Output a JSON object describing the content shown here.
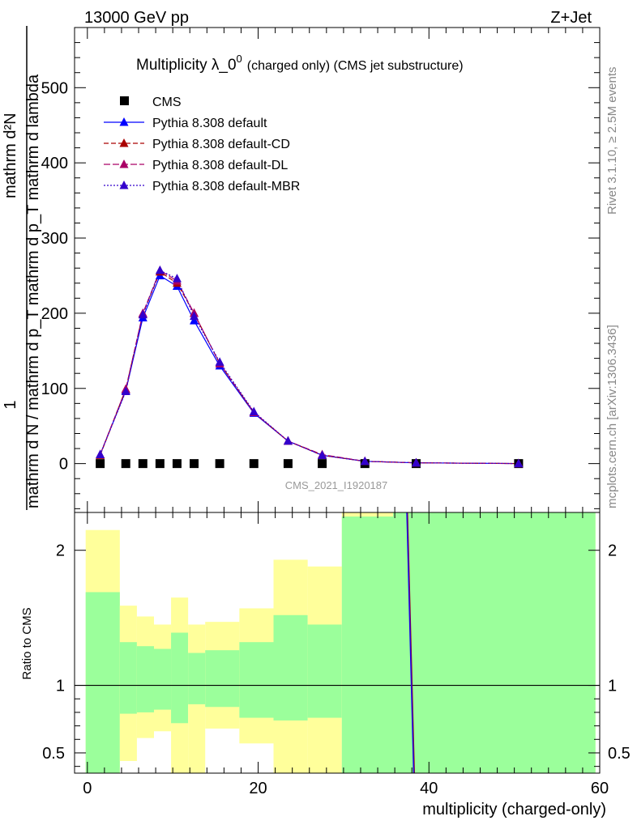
{
  "header": {
    "left": "13000 GeV pp",
    "right": "Z+Jet"
  },
  "side_labels": {
    "rivet": "Rivet 3.1.10, ≥ 2.5M events",
    "mcplots": "mcplots.cern.ch [arXiv:1306.3436]"
  },
  "chart_data": [
    {
      "type": "line",
      "title_main": "Multiplicity λ_0",
      "title_sup": "0",
      "title_suffix": "(charged only) (CMS jet substructure)",
      "watermark": "CMS_2021_I1920187",
      "ylabel_top": "1",
      "ylabel_bottom": "mathrm d N / mathrm d p_T mathrm d p_T mathrm d lambda",
      "ylabel_numerator": "mathrm d²N",
      "xlim": [
        -1.5,
        60
      ],
      "ylim": [
        -65,
        580
      ],
      "yticks": [
        0,
        100,
        200,
        300,
        400,
        500
      ],
      "legend": [
        {
          "name": "CMS",
          "color": "#000000",
          "marker": "square",
          "dash": "none"
        },
        {
          "name": "Pythia 8.308 default",
          "color": "#0000ff",
          "marker": "triangle",
          "dash": "solid"
        },
        {
          "name": "Pythia 8.308 default-CD",
          "color": "#aa0000",
          "marker": "triangle",
          "dash": "6,3"
        },
        {
          "name": "Pythia 8.308 default-DL",
          "color": "#aa0066",
          "marker": "triangle",
          "dash": "8,3"
        },
        {
          "name": "Pythia 8.308 default-MBR",
          "color": "#3300cc",
          "marker": "triangle",
          "dash": "2,2"
        }
      ],
      "x": [
        1.5,
        4.5,
        6.5,
        8.5,
        10.5,
        12.5,
        15.5,
        19.5,
        23.5,
        27.5,
        32.5,
        38.5,
        50.5
      ],
      "series": [
        {
          "name": "CMS",
          "values": [
            0,
            0,
            0,
            0,
            0,
            0,
            0,
            0,
            0,
            0,
            0,
            0,
            0
          ]
        },
        {
          "name": "Pythia 8.308 default",
          "values": [
            12,
            97,
            194,
            250,
            236,
            190,
            130,
            67,
            30,
            11,
            3,
            1,
            0
          ]
        },
        {
          "name": "Pythia 8.308 default-CD",
          "values": [
            11,
            99,
            199,
            255,
            240,
            200,
            133,
            68,
            30,
            11,
            3,
            1,
            0
          ]
        },
        {
          "name": "Pythia 8.308 default-DL",
          "values": [
            12,
            99,
            200,
            257,
            243,
            200,
            133,
            68,
            30,
            12,
            3,
            1,
            0
          ]
        },
        {
          "name": "Pythia 8.308 default-MBR",
          "values": [
            12,
            96,
            198,
            257,
            246,
            196,
            135,
            69,
            30,
            11,
            3,
            1,
            0
          ]
        }
      ]
    },
    {
      "type": "area",
      "ylabel": "Ratio to CMS",
      "xlabel": "multiplicity (charged-only)",
      "xlim": [
        -1.5,
        60
      ],
      "ylim": [
        0.35,
        2.28
      ],
      "yticks": [
        0.5,
        1,
        2
      ],
      "ytick_labels": [
        "0.5",
        "1",
        "2"
      ],
      "xticks": [
        0,
        20,
        40,
        60
      ],
      "xtick_labels": [
        "0",
        "20",
        "40",
        "60"
      ],
      "bins": [
        {
          "lo": -0.2,
          "hi": 3.8,
          "green": [
            0.35,
            1.69
          ],
          "yellow": [
            0.35,
            2.15
          ]
        },
        {
          "lo": 3.8,
          "hi": 5.8,
          "green": [
            0.79,
            1.32
          ],
          "yellow": [
            0.44,
            1.59
          ]
        },
        {
          "lo": 5.8,
          "hi": 7.8,
          "green": [
            0.8,
            1.29
          ],
          "yellow": [
            0.61,
            1.51
          ]
        },
        {
          "lo": 7.8,
          "hi": 9.8,
          "green": [
            0.82,
            1.27
          ],
          "yellow": [
            0.66,
            1.45
          ]
        },
        {
          "lo": 9.8,
          "hi": 11.8,
          "green": [
            0.72,
            1.39
          ],
          "yellow": [
            0.35,
            1.65
          ]
        },
        {
          "lo": 11.8,
          "hi": 13.8,
          "green": [
            0.86,
            1.24
          ],
          "yellow": [
            0.35,
            1.45
          ]
        },
        {
          "lo": 13.8,
          "hi": 17.8,
          "green": [
            0.84,
            1.26
          ],
          "yellow": [
            0.68,
            1.47
          ]
        },
        {
          "lo": 17.8,
          "hi": 21.8,
          "green": [
            0.76,
            1.32
          ],
          "yellow": [
            0.57,
            1.57
          ]
        },
        {
          "lo": 21.8,
          "hi": 25.8,
          "green": [
            0.74,
            1.52
          ],
          "yellow": [
            0.35,
            1.93
          ]
        },
        {
          "lo": 25.8,
          "hi": 29.8,
          "green": [
            0.76,
            1.45
          ],
          "yellow": [
            0.35,
            1.88
          ]
        },
        {
          "lo": 29.8,
          "hi": 35.8,
          "green": [
            0.35,
            2.25
          ],
          "yellow": [
            0.35,
            2.33
          ]
        },
        {
          "lo": 35.8,
          "hi": 59.5,
          "green": [
            0.35,
            2.33
          ],
          "yellow": [
            0.35,
            2.33
          ]
        }
      ],
      "ratio_lines": [
        {
          "name": "Pythia 8.308 default",
          "color": "#0000ff",
          "x": [
            37.4,
            38.2
          ],
          "values": [
            2.28,
            0.35
          ]
        },
        {
          "name": "Pythia 8.308 default-CD",
          "color": "#aa0000",
          "x": [
            37.5,
            38.3
          ],
          "values": [
            2.28,
            0.35
          ]
        },
        {
          "name": "Pythia 8.308 default-MBR",
          "color": "#3300cc",
          "x": [
            37.45,
            38.25
          ],
          "values": [
            2.28,
            0.35
          ]
        }
      ]
    }
  ],
  "colors": {
    "green": "#9bff9b",
    "yellow": "#ffff9b",
    "axis": "#000000",
    "watermark": "#999999",
    "side_text": "#888888"
  }
}
